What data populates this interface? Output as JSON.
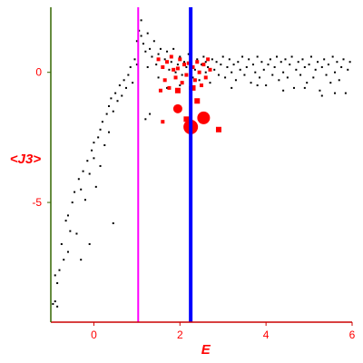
{
  "colors": {
    "axis_x": "#cc0000",
    "axis_y": "#336600",
    "labels": "#ff0000",
    "dots": "#000000",
    "markers": "#ff0000",
    "magenta_line": "#ff00ff",
    "blue_line": "#0000ff"
  },
  "chart_data": {
    "type": "scatter",
    "xlabel": "E",
    "ylabel": "<J3>",
    "xlim": [
      -1,
      6
    ],
    "ylim": [
      -9.6,
      2.5
    ],
    "x_ticks": [
      {
        "value": 0,
        "label": "0"
      },
      {
        "value": 2,
        "label": "2"
      },
      {
        "value": 4,
        "label": "4"
      },
      {
        "value": 6,
        "label": "6"
      }
    ],
    "y_ticks": [
      {
        "value": 0,
        "label": "0"
      },
      {
        "value": -5,
        "label": "-5"
      }
    ],
    "vertical_lines": [
      {
        "x": 1.03,
        "color": "#ff00ff"
      },
      {
        "x": 2.25,
        "color": "#0000ff"
      }
    ],
    "grid": false,
    "legend": "none",
    "series": [
      {
        "style": "small black dots",
        "points": [
          [
            -0.95,
            -8.9
          ],
          [
            -0.9,
            -8.8
          ],
          [
            -0.85,
            -9.0
          ],
          [
            -0.9,
            -7.8
          ],
          [
            -0.8,
            -7.6
          ],
          [
            -0.85,
            -8.1
          ],
          [
            -0.75,
            -6.6
          ],
          [
            -0.7,
            -7.2
          ],
          [
            -0.6,
            -6.9
          ],
          [
            -0.65,
            -5.7
          ],
          [
            -0.6,
            -5.5
          ],
          [
            -0.55,
            -6.1
          ],
          [
            -0.5,
            -5.0
          ],
          [
            -0.45,
            -4.6
          ],
          [
            -0.4,
            -6.2
          ],
          [
            -0.35,
            -4.1
          ],
          [
            -0.3,
            -4.5
          ],
          [
            -0.3,
            -7.2
          ],
          [
            -0.25,
            -3.8
          ],
          [
            -0.2,
            -4.9
          ],
          [
            -0.15,
            -3.4
          ],
          [
            -0.1,
            -3.9
          ],
          [
            -0.1,
            -6.6
          ],
          [
            -0.05,
            -3.0
          ],
          [
            0.0,
            -3.3
          ],
          [
            0.0,
            -2.7
          ],
          [
            0.05,
            -4.4
          ],
          [
            0.1,
            -2.5
          ],
          [
            0.15,
            -2.2
          ],
          [
            0.15,
            -3.6
          ],
          [
            0.2,
            -1.9
          ],
          [
            0.25,
            -2.8
          ],
          [
            0.3,
            -1.6
          ],
          [
            0.35,
            -1.3
          ],
          [
            0.35,
            -2.3
          ],
          [
            0.4,
            -1.0
          ],
          [
            0.45,
            -1.5
          ],
          [
            0.45,
            -5.8
          ],
          [
            0.5,
            -0.8
          ],
          [
            0.55,
            -1.1
          ],
          [
            0.6,
            -0.5
          ],
          [
            0.65,
            -0.9
          ],
          [
            0.7,
            -0.3
          ],
          [
            0.75,
            -0.6
          ],
          [
            0.8,
            -0.1
          ],
          [
            0.85,
            0.2
          ],
          [
            0.9,
            -0.4
          ],
          [
            0.95,
            0.5
          ],
          [
            1.0,
            1.2
          ],
          [
            1.0,
            0.3
          ],
          [
            1.05,
            1.6
          ],
          [
            1.1,
            2.0
          ],
          [
            1.15,
            1.1
          ],
          [
            1.2,
            0.8
          ],
          [
            1.25,
            1.5
          ],
          [
            1.3,
            0.9
          ],
          [
            1.35,
            0.6
          ],
          [
            1.4,
            1.2
          ],
          [
            1.45,
            0.3
          ],
          [
            1.5,
            0.7
          ],
          [
            1.55,
            0.9
          ],
          [
            1.6,
            0.2
          ],
          [
            1.65,
            0.5
          ],
          [
            1.7,
            0.8
          ],
          [
            1.75,
            0.1
          ],
          [
            1.8,
            0.4
          ],
          [
            1.85,
            0.9
          ],
          [
            1.9,
            0.0
          ],
          [
            1.95,
            0.3
          ],
          [
            2.0,
            0.6
          ],
          [
            2.05,
            -0.1
          ],
          [
            2.1,
            0.4
          ],
          [
            2.15,
            0.2
          ],
          [
            2.2,
            0.7
          ],
          [
            2.3,
            -0.2
          ],
          [
            2.35,
            0.1
          ],
          [
            2.4,
            0.5
          ],
          [
            2.45,
            -0.3
          ],
          [
            2.5,
            0.3
          ],
          [
            2.55,
            0.6
          ],
          [
            2.6,
            0.0
          ],
          [
            2.65,
            0.2
          ],
          [
            2.7,
            -0.4
          ],
          [
            2.75,
            0.5
          ],
          [
            2.8,
            0.1
          ],
          [
            2.85,
            0.4
          ],
          [
            2.9,
            -0.1
          ],
          [
            2.95,
            0.3
          ],
          [
            3.0,
            0.6
          ],
          [
            3.05,
            -0.2
          ],
          [
            3.1,
            0.2
          ],
          [
            3.15,
            0.5
          ],
          [
            3.2,
            0.0
          ],
          [
            3.25,
            0.3
          ],
          [
            3.3,
            -0.3
          ],
          [
            3.35,
            0.4
          ],
          [
            3.4,
            0.1
          ],
          [
            3.45,
            0.6
          ],
          [
            3.5,
            -0.1
          ],
          [
            3.55,
            0.2
          ],
          [
            3.6,
            0.5
          ],
          [
            3.65,
            -0.4
          ],
          [
            3.7,
            0.3
          ],
          [
            3.75,
            0.0
          ],
          [
            3.8,
            0.6
          ],
          [
            3.85,
            -0.2
          ],
          [
            3.9,
            0.4
          ],
          [
            3.95,
            0.1
          ],
          [
            4.0,
            -0.5
          ],
          [
            4.05,
            0.3
          ],
          [
            4.1,
            0.5
          ],
          [
            4.15,
            -0.1
          ],
          [
            4.2,
            0.2
          ],
          [
            4.25,
            0.6
          ],
          [
            4.3,
            -0.3
          ],
          [
            4.35,
            0.4
          ],
          [
            4.4,
            0.0
          ],
          [
            4.45,
            0.5
          ],
          [
            4.5,
            -0.2
          ],
          [
            4.55,
            0.3
          ],
          [
            4.6,
            0.6
          ],
          [
            4.65,
            -0.6
          ],
          [
            4.7,
            0.1
          ],
          [
            4.75,
            0.4
          ],
          [
            4.8,
            -0.1
          ],
          [
            4.85,
            0.5
          ],
          [
            4.9,
            0.2
          ],
          [
            4.95,
            -0.4
          ],
          [
            5.0,
            0.3
          ],
          [
            5.05,
            0.6
          ],
          [
            5.1,
            -0.2
          ],
          [
            5.15,
            0.1
          ],
          [
            5.2,
            0.4
          ],
          [
            5.25,
            -0.7
          ],
          [
            5.3,
            0.2
          ],
          [
            5.35,
            0.5
          ],
          [
            5.4,
            -0.1
          ],
          [
            5.45,
            0.3
          ],
          [
            5.5,
            -0.4
          ],
          [
            5.55,
            0.6
          ],
          [
            5.6,
            0.0
          ],
          [
            5.65,
            0.4
          ],
          [
            5.7,
            -0.3
          ],
          [
            5.75,
            0.2
          ],
          [
            5.8,
            0.5
          ],
          [
            5.85,
            -0.8
          ],
          [
            5.9,
            0.1
          ],
          [
            5.95,
            0.4
          ],
          [
            2.0,
            -0.5
          ],
          [
            1.5,
            -0.2
          ],
          [
            1.3,
            -1.6
          ],
          [
            1.2,
            -1.8
          ],
          [
            1.7,
            -0.6
          ],
          [
            3.2,
            -0.6
          ],
          [
            4.4,
            -0.7
          ],
          [
            5.6,
            -0.8
          ],
          [
            1.1,
            1.4
          ],
          [
            1.25,
            0.2
          ],
          [
            2.6,
            0.4
          ],
          [
            3.8,
            -0.5
          ],
          [
            4.9,
            -0.6
          ],
          [
            5.3,
            -0.9
          ]
        ]
      },
      {
        "style": "red squares, size varies",
        "points": [
          [
            1.5,
            0.5,
            1
          ],
          [
            1.6,
            0.2,
            1
          ],
          [
            1.7,
            0.4,
            1
          ],
          [
            1.8,
            0.6,
            1
          ],
          [
            1.65,
            -0.3,
            1
          ],
          [
            1.75,
            -0.6,
            1
          ],
          [
            1.85,
            0.1,
            1
          ],
          [
            1.9,
            -0.2,
            1
          ],
          [
            2.0,
            0.5,
            1
          ],
          [
            2.05,
            -0.4,
            1
          ],
          [
            2.1,
            0.3,
            1
          ],
          [
            2.15,
            -0.1,
            1
          ],
          [
            2.3,
            0.2,
            1
          ],
          [
            2.35,
            -0.3,
            1
          ],
          [
            2.4,
            0.4,
            1
          ],
          [
            2.45,
            0.0,
            1
          ],
          [
            2.5,
            -0.5,
            1
          ],
          [
            2.55,
            0.3,
            1
          ],
          [
            2.6,
            -0.2,
            1
          ],
          [
            2.65,
            0.5,
            1
          ],
          [
            2.7,
            0.1,
            1
          ],
          [
            1.55,
            -0.7,
            1
          ],
          [
            1.6,
            -1.9,
            1
          ],
          [
            2.25,
            -0.6,
            1
          ],
          [
            1.95,
            -0.7,
            2
          ],
          [
            2.3,
            -0.6,
            2
          ],
          [
            2.4,
            -1.1,
            2
          ],
          [
            1.95,
            -1.4,
            3
          ],
          [
            2.55,
            -1.75,
            4
          ],
          [
            2.25,
            -2.1,
            5
          ],
          [
            2.9,
            -2.2,
            2
          ],
          [
            2.15,
            -1.8,
            2
          ],
          [
            1.95,
            0.15,
            1
          ],
          [
            2.2,
            0.35,
            1
          ]
        ]
      }
    ]
  }
}
